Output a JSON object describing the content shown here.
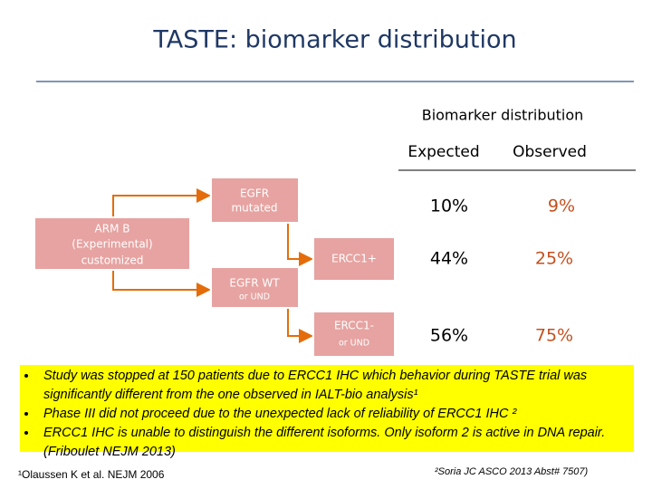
{
  "header": {
    "title": "TASTE: biomarker distribution"
  },
  "table": {
    "title": "Biomarker distribution",
    "columns": [
      "Expected",
      "Observed"
    ],
    "rows": [
      [
        "10%",
        "9%"
      ],
      [
        "44%",
        "25%"
      ],
      [
        "56%",
        "75%"
      ]
    ]
  },
  "diagram": {
    "nodes": [
      {
        "lines": [
          "ARM B",
          "(Experimental)",
          "customized"
        ]
      },
      {
        "lines": [
          "EGFR",
          "mutated"
        ]
      },
      {
        "lines": [
          "ERCC1+"
        ]
      },
      {
        "lines": [
          "EGFR WT",
          "or UND"
        ]
      },
      {
        "lines": [
          "ERCC1-",
          "or UND"
        ]
      }
    ]
  },
  "notes": {
    "bullets": [
      "Study was stopped at 150 patients due  to ERCC1 IHC which behavior during TASTE trial was significantly different from the one observed in IALT-bio analysis¹",
      "Phase III did not proceed due to the unexpected lack of reliability of ERCC1 IHC ²",
      "ERCC1 IHC is unable to distinguish the different isoforms. Only isoform 2 is active in DNA repair. (Friboulet NEJM 2013)"
    ],
    "footnote1": "¹Olaussen K et al. NEJM 2006",
    "footnote2": "²Soria JC ASCO 2013 Abst# 7507)"
  }
}
